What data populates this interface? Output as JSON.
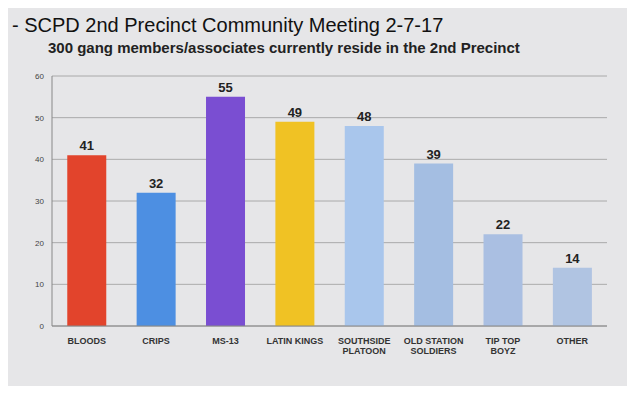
{
  "chart_data": {
    "type": "bar",
    "subtitle": "- SCPD 2nd Precinct Community Meeting 2-7-17",
    "title": "300 gang members/associates currently reside in the 2nd Precinct",
    "categories": [
      "BLOODS",
      "CRIPS",
      "MS-13",
      "LATIN KINGS",
      "SOUTHSIDE PLATOON",
      "OLD STATION SOLDIERS",
      "TIP TOP BOYZ",
      "OTHER"
    ],
    "values": [
      41,
      32,
      55,
      49,
      48,
      39,
      22,
      14
    ],
    "colors": [
      "#e2442c",
      "#4d8fe2",
      "#7a4ed2",
      "#f0c224",
      "#a9c6ec",
      "#a4bee2",
      "#aabfe2",
      "#b0c4e2"
    ],
    "ylim": [
      0,
      60
    ],
    "yticks": [
      0,
      10,
      20,
      30,
      40,
      50,
      60
    ],
    "grid": true,
    "data_labels": true
  }
}
